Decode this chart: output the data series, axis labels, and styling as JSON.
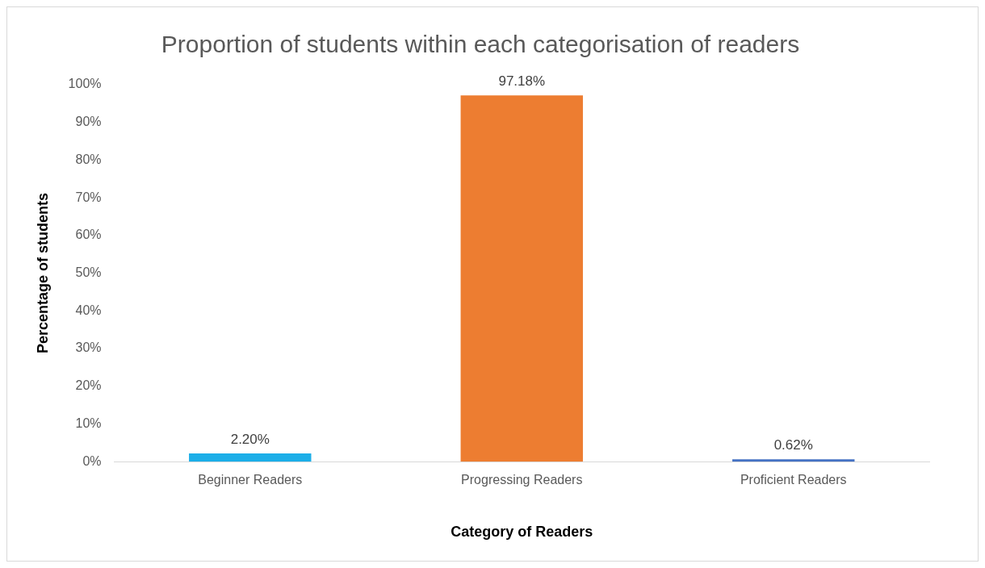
{
  "chart_data": {
    "type": "bar",
    "title": "Proportion of students within each categorisation of readers",
    "xlabel": "Category of Readers",
    "ylabel": "Percentage of students",
    "categories": [
      "Beginner Readers",
      "Progressing Readers",
      "Proficient Readers"
    ],
    "values": [
      2.2,
      97.18,
      0.62
    ],
    "colors": [
      "#1caee8",
      "#ed7d31",
      "#4472c4"
    ],
    "value_labels": [
      "2.20%",
      "97.18%",
      "0.62%"
    ],
    "ylim": [
      0,
      100
    ],
    "yticks": [
      {
        "value": 0,
        "label": "0%"
      },
      {
        "value": 10,
        "label": "10%"
      },
      {
        "value": 20,
        "label": "20%"
      },
      {
        "value": 30,
        "label": "30%"
      },
      {
        "value": 40,
        "label": "40%"
      },
      {
        "value": 50,
        "label": "50%"
      },
      {
        "value": 60,
        "label": "60%"
      },
      {
        "value": 70,
        "label": "70%"
      },
      {
        "value": 80,
        "label": "80%"
      },
      {
        "value": 90,
        "label": "90%"
      },
      {
        "value": 100,
        "label": "100%"
      }
    ],
    "grid": false
  }
}
